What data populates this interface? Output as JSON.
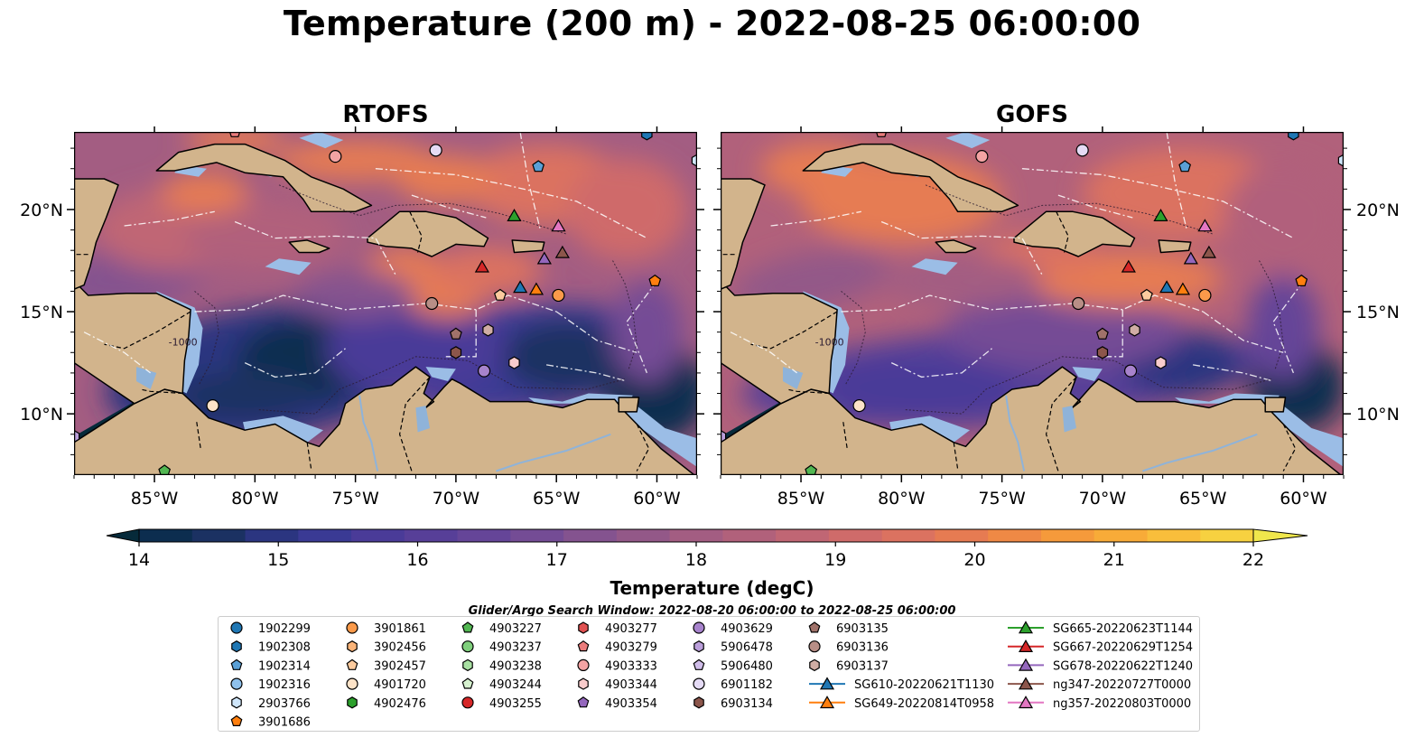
{
  "title": "Temperature (200 m) - 2022-08-25 06:00:00",
  "panels": [
    {
      "id": "rtofs",
      "title": "RTOFS"
    },
    {
      "id": "gofs",
      "title": "GOFS"
    }
  ],
  "axes": {
    "x_ticks": [
      "85°W",
      "80°W",
      "75°W",
      "70°W",
      "65°W",
      "60°W"
    ],
    "y_ticks": [
      "20°N",
      "15°N",
      "10°N"
    ],
    "lon_range": [
      -89,
      -58
    ],
    "lat_range": [
      7,
      23.8
    ]
  },
  "contour_label": "-1000",
  "colorbar": {
    "label": "Temperature (degC)",
    "ticks": [
      "14",
      "15",
      "16",
      "17",
      "18",
      "19",
      "20",
      "21",
      "22"
    ],
    "min": 14,
    "max": 22,
    "step": 0.5,
    "extend": "both",
    "colormap": "thermal",
    "colors": [
      "#062a3a",
      "#0c2d4f",
      "#1b3162",
      "#2b3580",
      "#3a3a94",
      "#4a3b98",
      "#573f98",
      "#654598",
      "#744c95",
      "#84538f",
      "#935888",
      "#a35d82",
      "#b1617b",
      "#c06674",
      "#cf6b6a",
      "#db7260",
      "#e67b52",
      "#ef8945",
      "#f59a3b",
      "#f8ab38",
      "#f9be3b",
      "#f7d140",
      "#f0e74c"
    ]
  },
  "search_window": "Glider/Argo Search Window: 2022-08-20 06:00:00 to 2022-08-25 06:00:00",
  "legend": {
    "columns": [
      [
        {
          "label": "1902299",
          "marker": "circle",
          "color": "#1f77b4"
        },
        {
          "label": "1902308",
          "marker": "hexagon",
          "color": "#1f77b4"
        },
        {
          "label": "1902314",
          "marker": "pentagon",
          "color": "#5aa0d6"
        },
        {
          "label": "1902316",
          "marker": "circle",
          "color": "#8fc1ec"
        },
        {
          "label": "2903766",
          "marker": "hexagon",
          "color": "#cfe6fa"
        },
        {
          "label": "3901686",
          "marker": "pentagon",
          "color": "#ff7f0e"
        }
      ],
      [
        {
          "label": "3901861",
          "marker": "circle",
          "color": "#fb9a4a"
        },
        {
          "label": "3902456",
          "marker": "hexagon",
          "color": "#fbb479"
        },
        {
          "label": "3902457",
          "marker": "pentagon",
          "color": "#fccb9e"
        },
        {
          "label": "4901720",
          "marker": "circle",
          "color": "#fde3c8"
        },
        {
          "label": "4902476",
          "marker": "hexagon",
          "color": "#2ca02c"
        }
      ],
      [
        {
          "label": "4903227",
          "marker": "pentagon",
          "color": "#52b752"
        },
        {
          "label": "4903237",
          "marker": "circle",
          "color": "#7fcf7c"
        },
        {
          "label": "4903238",
          "marker": "hexagon",
          "color": "#a8e0a2"
        },
        {
          "label": "4903244",
          "marker": "pentagon",
          "color": "#d6f2cf"
        },
        {
          "label": "4903255",
          "marker": "circle",
          "color": "#d62728"
        }
      ],
      [
        {
          "label": "4903277",
          "marker": "hexagon",
          "color": "#e05151"
        },
        {
          "label": "4903279",
          "marker": "pentagon",
          "color": "#eb7c7c"
        },
        {
          "label": "4903333",
          "marker": "circle",
          "color": "#f3a3a3"
        },
        {
          "label": "4903344",
          "marker": "hexagon",
          "color": "#f9cccc"
        },
        {
          "label": "4903354",
          "marker": "pentagon",
          "color": "#9467bd"
        }
      ],
      [
        {
          "label": "4903629",
          "marker": "circle",
          "color": "#a783cc"
        },
        {
          "label": "5906478",
          "marker": "hexagon",
          "color": "#bb9fdb"
        },
        {
          "label": "5906480",
          "marker": "pentagon",
          "color": "#d0bde9"
        },
        {
          "label": "6901182",
          "marker": "circle",
          "color": "#e5dbf5"
        },
        {
          "label": "6903134",
          "marker": "hexagon",
          "color": "#8c564b"
        }
      ],
      [
        {
          "label": "6903135",
          "marker": "pentagon",
          "color": "#a0726a"
        },
        {
          "label": "6903136",
          "marker": "circle",
          "color": "#b88e86"
        },
        {
          "label": "6903137",
          "marker": "hexagon",
          "color": "#d0ada4"
        },
        {
          "label": "SG610-20220621T1130",
          "marker": "triangle-line",
          "color": "#1f77b4"
        },
        {
          "label": "SG649-20220814T0958",
          "marker": "triangle-line",
          "color": "#ff7f0e"
        }
      ],
      [
        {
          "label": "SG665-20220623T1144",
          "marker": "triangle-line",
          "color": "#2ca02c"
        },
        {
          "label": "SG667-20220629T1254",
          "marker": "triangle-line",
          "color": "#d62728"
        },
        {
          "label": "SG678-20220622T1240",
          "marker": "triangle-line",
          "color": "#9467bd"
        },
        {
          "label": "ng347-20220727T0000",
          "marker": "triangle-line",
          "color": "#8c564b"
        },
        {
          "label": "ng357-20220803T0000",
          "marker": "triangle-line",
          "color": "#e377c2"
        }
      ]
    ]
  },
  "markers": [
    {
      "name": "argo-3901686",
      "lon": -60.1,
      "lat": 16.5,
      "shape": "pentagon",
      "color": "#ff7f0e"
    },
    {
      "name": "argo-3901861",
      "lon": -64.9,
      "lat": 15.8,
      "shape": "circle",
      "color": "#fb9a4a"
    },
    {
      "name": "argo-4901720",
      "lon": -82.1,
      "lat": 10.4,
      "shape": "circle",
      "color": "#fde3c8"
    },
    {
      "name": "argo-3902457",
      "lon": -67.8,
      "lat": 15.8,
      "shape": "pentagon",
      "color": "#fccb9e"
    },
    {
      "name": "argo-4903344",
      "lon": -67.1,
      "lat": 12.5,
      "shape": "hexagon",
      "color": "#f9cccc"
    },
    {
      "name": "argo-4903629",
      "lon": -68.6,
      "lat": 12.1,
      "shape": "circle",
      "color": "#a783cc"
    },
    {
      "name": "argo-6903134",
      "lon": -70.0,
      "lat": 13.0,
      "shape": "hexagon",
      "color": "#8c564b"
    },
    {
      "name": "argo-6903135",
      "lon": -70.0,
      "lat": 13.9,
      "shape": "pentagon",
      "color": "#a0726a"
    },
    {
      "name": "argo-6903137",
      "lon": -68.4,
      "lat": 14.1,
      "shape": "hexagon",
      "color": "#d0ada4"
    },
    {
      "name": "argo-6903136",
      "lon": -71.2,
      "lat": 15.4,
      "shape": "circle",
      "color": "#b88e86"
    },
    {
      "name": "argo-6901182",
      "lon": -71.0,
      "lat": 22.9,
      "shape": "circle",
      "color": "#e5dbf5"
    },
    {
      "name": "argo-4903333",
      "lon": -76.0,
      "lat": 22.6,
      "shape": "circle",
      "color": "#f3a3a3"
    },
    {
      "name": "argo-1902314",
      "lon": -65.9,
      "lat": 22.1,
      "shape": "pentagon",
      "color": "#5aa0d6"
    },
    {
      "name": "argo-1902308",
      "lon": -60.5,
      "lat": 23.7,
      "shape": "hexagon",
      "color": "#1f77b4"
    },
    {
      "name": "argo-2903766",
      "lon": -58.0,
      "lat": 22.4,
      "shape": "hexagon",
      "color": "#cfe6fa"
    },
    {
      "name": "argo-4903279",
      "lon": -81.0,
      "lat": 23.8,
      "shape": "pentagon",
      "color": "#eb7c7c"
    },
    {
      "name": "argo-5906478",
      "lon": -89.0,
      "lat": 8.9,
      "shape": "hexagon",
      "color": "#bb9fdb"
    },
    {
      "name": "argo-4903227",
      "lon": -84.5,
      "lat": 7.2,
      "shape": "pentagon",
      "color": "#52b752"
    },
    {
      "name": "glider-SG665",
      "lon": -67.1,
      "lat": 19.7,
      "shape": "triangle",
      "color": "#2ca02c"
    },
    {
      "name": "glider-ng357",
      "lon": -64.9,
      "lat": 19.2,
      "shape": "triangle",
      "color": "#e377c2"
    },
    {
      "name": "glider-SG678",
      "lon": -65.6,
      "lat": 17.6,
      "shape": "triangle",
      "color": "#9467bd"
    },
    {
      "name": "glider-ng347",
      "lon": -64.7,
      "lat": 17.9,
      "shape": "triangle",
      "color": "#8c564b"
    },
    {
      "name": "glider-SG667",
      "lon": -68.7,
      "lat": 17.2,
      "shape": "triangle",
      "color": "#d62728"
    },
    {
      "name": "glider-SG610",
      "lon": -66.8,
      "lat": 16.2,
      "shape": "triangle",
      "color": "#1f77b4"
    },
    {
      "name": "glider-SG649",
      "lon": -66.0,
      "lat": 16.1,
      "shape": "triangle",
      "color": "#ff7f0e"
    }
  ]
}
